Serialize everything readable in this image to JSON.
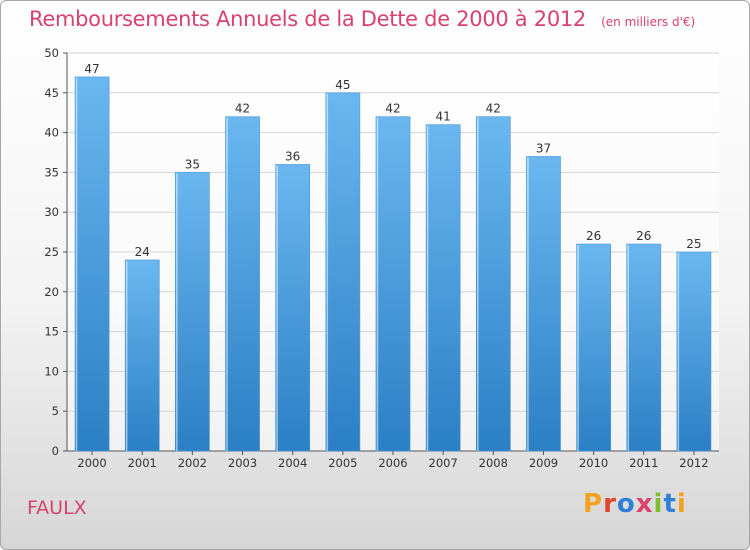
{
  "header": {
    "title": "Remboursements Annuels de la Dette de 2000 à 2012",
    "unit": "(en milliers d'€)"
  },
  "footer": {
    "commune": "FAULX",
    "logo_text": "Proxiti",
    "logo_colors": [
      "#f2a21c",
      "#e2432b",
      "#2f7fd8",
      "#d9426e",
      "#7cbf2a",
      "#2f7fd8",
      "#f2a21c"
    ]
  },
  "colors": {
    "bar_top": "#6ab7f0",
    "bar_bottom": "#2b7fc4",
    "title": "#d9426e",
    "grid": "#d4d4d4"
  },
  "chart_data": {
    "type": "bar",
    "title": "Remboursements Annuels de la Dette de 2000 à 2012",
    "xlabel": "",
    "ylabel": "",
    "categories": [
      "2000",
      "2001",
      "2002",
      "2003",
      "2004",
      "2005",
      "2006",
      "2007",
      "2008",
      "2009",
      "2010",
      "2011",
      "2012"
    ],
    "values": [
      47,
      24,
      35,
      42,
      36,
      45,
      42,
      41,
      42,
      37,
      26,
      26,
      25
    ],
    "ylim": [
      0,
      50
    ],
    "yticks": [
      0,
      5,
      10,
      15,
      20,
      25,
      30,
      35,
      40,
      45,
      50
    ],
    "grid": true,
    "legend": "none"
  }
}
